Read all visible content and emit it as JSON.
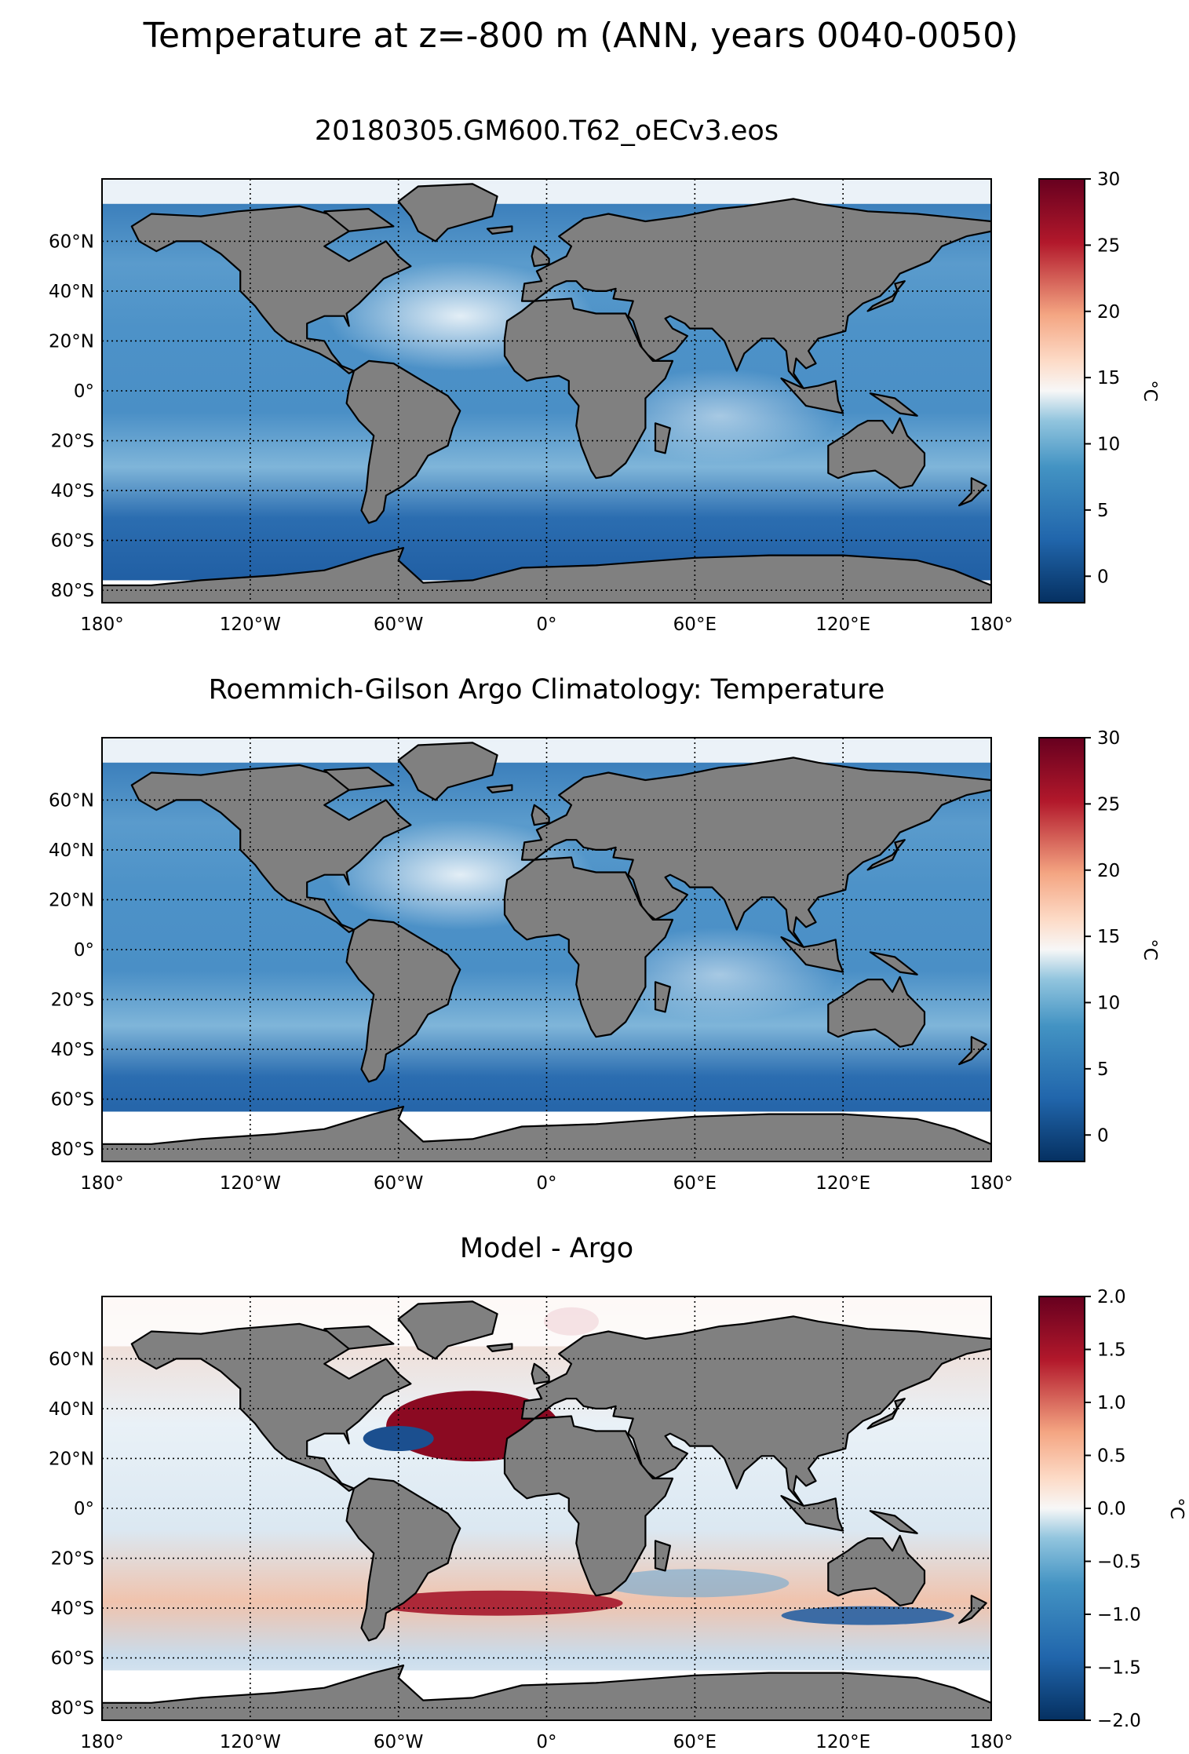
{
  "figure": {
    "title": "Temperature at z=-800 m (ANN, years 0040-0050)"
  },
  "axes": {
    "lon_ticks": [
      "180°",
      "120°W",
      "60°W",
      "0°",
      "60°E",
      "120°E",
      "180°"
    ],
    "lon_values": [
      -180,
      -120,
      -60,
      0,
      60,
      120,
      180
    ],
    "lat_ticks": [
      "60°N",
      "40°N",
      "20°N",
      "0°",
      "20°S",
      "40°S",
      "60°S",
      "80°S"
    ],
    "lat_values": [
      60,
      40,
      20,
      0,
      -20,
      -40,
      -60,
      -80
    ],
    "lat_range": [
      -85,
      85
    ],
    "lon_range": [
      -180,
      180
    ],
    "grid": "dotted"
  },
  "colors": {
    "land": "#808080",
    "missing": "#ffffff",
    "cmap_dark_blue": "#053061",
    "cmap_blue": "#2166ac",
    "cmap_light_blue": "#92c5de",
    "cmap_white": "#f7f7f7",
    "cmap_light_red": "#f4a582",
    "cmap_red": "#b2182b",
    "cmap_dark_red": "#67001f"
  },
  "panels": [
    {
      "title": "20180305.GM600.T62_oECv3.eos",
      "colorbar": {
        "label": "°C",
        "min": -2,
        "max": 30,
        "ticks": [
          0,
          5,
          10,
          15,
          20,
          25,
          30
        ],
        "tick_labels": [
          "0",
          "5",
          "10",
          "15",
          "20",
          "25",
          "30"
        ]
      }
    },
    {
      "title": "Roemmich-Gilson Argo Climatology: Temperature",
      "colorbar": {
        "label": "°C",
        "min": -2,
        "max": 30,
        "ticks": [
          0,
          5,
          10,
          15,
          20,
          25,
          30
        ],
        "tick_labels": [
          "0",
          "5",
          "10",
          "15",
          "20",
          "25",
          "30"
        ]
      }
    },
    {
      "title": "Model - Argo",
      "colorbar": {
        "label": "°C",
        "min": -2.0,
        "max": 2.0,
        "ticks": [
          -2.0,
          -1.5,
          -1.0,
          -0.5,
          0.0,
          0.5,
          1.0,
          1.5,
          2.0
        ],
        "tick_labels": [
          "−2.0",
          "−1.5",
          "−1.0",
          "−0.5",
          "0.0",
          "0.5",
          "1.0",
          "1.5",
          "2.0"
        ]
      }
    }
  ]
}
